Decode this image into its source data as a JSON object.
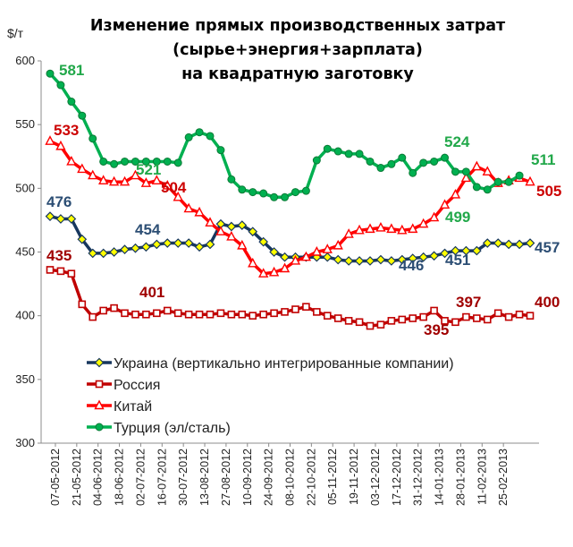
{
  "chart_data": {
    "type": "line",
    "title": [
      "Изменение прямых производственных затрат",
      "(сырье+энергия+зарплата)",
      "на квадратную заготовку"
    ],
    "ylabel": "$/т",
    "ylim": [
      300,
      600
    ],
    "yticks": [
      300,
      350,
      400,
      450,
      500,
      550,
      600
    ],
    "grid": false,
    "legend_position": "lower-left",
    "x_tick_labels": [
      "07-05-2012",
      "21-05-2012",
      "04-06-2012",
      "18-06-2012",
      "02-07-2012",
      "16-07-2012",
      "30-07-2012",
      "13-08-2012",
      "27-08-2012",
      "10-09-2012",
      "24-09-2012",
      "08-10-2012",
      "22-10-2012",
      "05-11-2012",
      "19-11-2012",
      "03-12-2012",
      "17-12-2012",
      "31-12-2012",
      "14-01-2013",
      "28-01-2013",
      "11-02-2013",
      "25-02-2013"
    ],
    "series": [
      {
        "name": "Украина (вертикально интегрированные компании)",
        "color": "#17375e",
        "marker": "diamond",
        "values": [
          478,
          476,
          476,
          460,
          449,
          449,
          450,
          452,
          453,
          454,
          456,
          457,
          457,
          457,
          454,
          456,
          472,
          470,
          471,
          466,
          458,
          450,
          446,
          446,
          446,
          446,
          446,
          444,
          443,
          443,
          443,
          444,
          443,
          444,
          445,
          446,
          447,
          449,
          451,
          451,
          451,
          457,
          457,
          456,
          456,
          457
        ]
      },
      {
        "name": "Россия",
        "color": "#c00000",
        "marker": "square",
        "values": [
          436,
          435,
          433,
          409,
          399,
          404,
          406,
          402,
          401,
          401,
          402,
          404,
          402,
          401,
          401,
          401,
          402,
          401,
          401,
          400,
          401,
          402,
          403,
          405,
          407,
          403,
          400,
          398,
          396,
          395,
          392,
          393,
          396,
          397,
          398,
          399,
          404,
          396,
          395,
          399,
          398,
          397,
          402,
          399,
          401,
          400
        ]
      },
      {
        "name": "Китай",
        "color": "#ff0000",
        "marker": "triangle",
        "values": [
          537,
          533,
          521,
          515,
          510,
          506,
          505,
          505,
          510,
          504,
          506,
          502,
          493,
          484,
          481,
          473,
          466,
          462,
          455,
          441,
          433,
          434,
          437,
          443,
          446,
          450,
          452,
          455,
          464,
          467,
          468,
          469,
          468,
          467,
          468,
          472,
          477,
          487,
          495,
          508,
          517,
          513,
          504,
          506,
          508,
          505
        ]
      },
      {
        "name": "Турция (эл/сталь)",
        "color": "#00b050",
        "marker": "circle",
        "values": [
          590,
          581,
          568,
          557,
          539,
          521,
          519,
          521,
          521,
          521,
          521,
          521,
          520,
          540,
          544,
          541,
          530,
          507,
          499,
          497,
          496,
          493,
          493,
          497,
          498,
          522,
          531,
          529,
          527,
          527,
          521,
          516,
          519,
          524,
          512,
          520,
          521,
          524,
          513,
          513,
          501,
          499,
          505,
          505,
          510
        ]
      }
    ],
    "annotations": [
      {
        "text": "581",
        "series": 3
      },
      {
        "text": "521",
        "series": 3
      },
      {
        "text": "524",
        "series": 3
      },
      {
        "text": "511",
        "series": 3
      },
      {
        "text": "499",
        "series": 3
      },
      {
        "text": "533",
        "series": 2
      },
      {
        "text": "504",
        "series": 2
      },
      {
        "text": "505",
        "series": 2
      },
      {
        "text": "476",
        "series": 0
      },
      {
        "text": "454",
        "series": 0
      },
      {
        "text": "446",
        "series": 0
      },
      {
        "text": "451",
        "series": 0
      },
      {
        "text": "457",
        "series": 0
      },
      {
        "text": "435",
        "series": 1
      },
      {
        "text": "401",
        "series": 1
      },
      {
        "text": "395",
        "series": 1
      },
      {
        "text": "397",
        "series": 1
      },
      {
        "text": "400",
        "series": 1
      }
    ]
  }
}
